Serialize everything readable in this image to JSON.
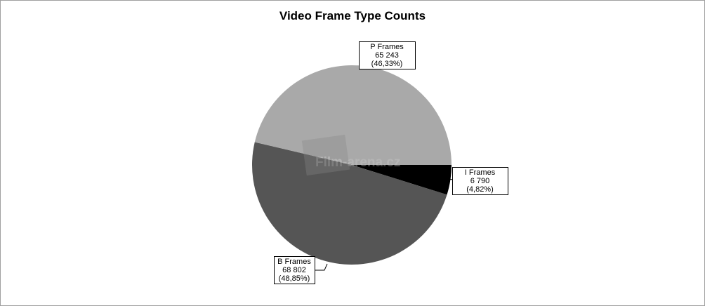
{
  "chart_data": {
    "type": "pie",
    "title": "Video Frame Type Counts",
    "slices": [
      {
        "label": "I Frames",
        "value": 6790,
        "value_text": "6 790",
        "percent_text": "(4,82%)",
        "color": "#000000"
      },
      {
        "label": "B Frames",
        "value": 68802,
        "value_text": "68 802",
        "percent_text": "(48,85%)",
        "color": "#555555"
      },
      {
        "label": "P Frames",
        "value": 65243,
        "value_text": "65 243",
        "percent_text": "(46,33%)",
        "color": "#a9a9a9"
      }
    ],
    "start_angle": "east, clockwise",
    "legend": "none"
  },
  "watermark": "Film-arena.cz"
}
